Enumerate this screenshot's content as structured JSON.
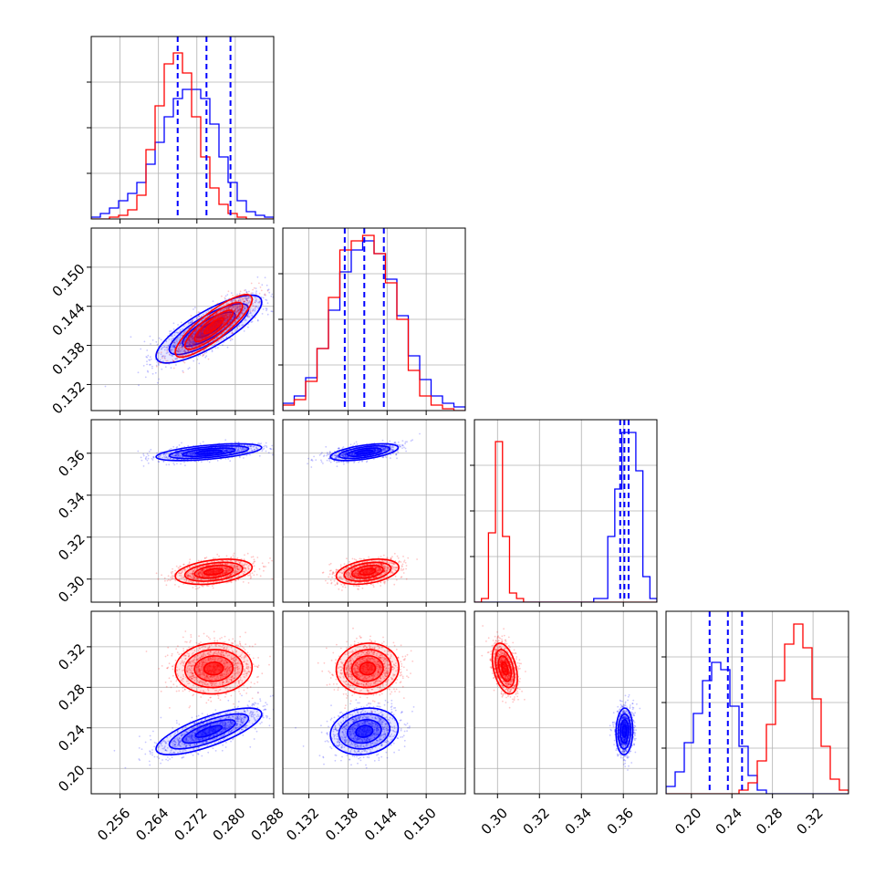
{
  "chart_data": {
    "type": "corner",
    "parameters": 4,
    "grid": true,
    "colors": {
      "model_a": "#0000ff",
      "model_b": "#ff0000"
    },
    "axes": [
      {
        "range": [
          0.25,
          0.288
        ],
        "ticks": [
          0.256,
          0.264,
          0.272,
          0.28,
          0.288
        ],
        "tick_labels": [
          "0.256",
          "0.264",
          "0.272",
          "0.280",
          "0.288"
        ]
      },
      {
        "range": [
          0.128,
          0.156
        ],
        "ticks": [
          0.132,
          0.138,
          0.144,
          0.15
        ],
        "tick_labels": [
          "0.132",
          "0.138",
          "0.144",
          "0.150"
        ]
      },
      {
        "range": [
          0.289,
          0.376
        ],
        "ticks": [
          0.3,
          0.32,
          0.34,
          0.36
        ],
        "tick_labels": [
          "0.30",
          "0.32",
          "0.34",
          "0.36"
        ]
      },
      {
        "range": [
          0.175,
          0.355
        ],
        "ticks": [
          0.2,
          0.24,
          0.28,
          0.32
        ],
        "tick_labels": [
          "0.20",
          "0.24",
          "0.28",
          "0.32"
        ]
      }
    ],
    "series": [
      {
        "color": "#0000ff",
        "means": [
          0.2745,
          0.1405,
          0.3605,
          0.2365
        ],
        "sigmas": [
          0.0055,
          0.0026,
          0.002,
          0.0115
        ],
        "correlations": [
          [
            0,
            1,
            0.8
          ],
          [
            0,
            2,
            0.55
          ],
          [
            0,
            3,
            0.75
          ],
          [
            1,
            2,
            0.55
          ],
          [
            1,
            3,
            0.15
          ],
          [
            2,
            3,
            0.05
          ]
        ],
        "quantile_lines": [
          [
            0.268,
            0.274,
            0.279
          ],
          [
            0.1375,
            0.1405,
            0.1435
          ],
          [
            0.3585,
            0.3605,
            0.3625
          ],
          [
            0.218,
            0.236,
            0.25
          ]
        ],
        "histograms": [
          [
            0.01,
            0.03,
            0.06,
            0.1,
            0.14,
            0.2,
            0.3,
            0.42,
            0.56,
            0.66,
            0.71,
            0.71,
            0.66,
            0.52,
            0.34,
            0.2,
            0.1,
            0.04,
            0.02,
            0.01
          ],
          [
            0.04,
            0.08,
            0.18,
            0.34,
            0.55,
            0.76,
            0.88,
            0.93,
            0.86,
            0.72,
            0.52,
            0.3,
            0.17,
            0.08,
            0.04,
            0.02
          ],
          [
            0.0,
            0.0,
            0.0,
            0.0,
            0.0,
            0.0,
            0.0,
            0.0,
            0.0,
            0.0,
            0.0,
            0.0,
            0.0,
            0.0,
            0.0,
            0.0,
            0.0,
            0.02,
            0.02,
            0.36,
            0.62,
            0.93,
            0.93,
            0.72,
            0.14,
            0.02
          ],
          [
            0.04,
            0.12,
            0.28,
            0.44,
            0.62,
            0.72,
            0.68,
            0.48,
            0.26,
            0.1,
            0.02,
            0.0,
            0.0,
            0.0,
            0.0,
            0.0,
            0.0,
            0.0,
            0.0,
            0.0
          ]
        ]
      },
      {
        "color": "#ff0000",
        "means": [
          0.2755,
          0.141,
          0.3035,
          0.2985
        ],
        "sigmas": [
          0.004,
          0.0024,
          0.003,
          0.0125
        ],
        "correlations": [
          [
            0,
            1,
            0.85
          ],
          [
            0,
            2,
            0.35
          ],
          [
            0,
            3,
            0.05
          ],
          [
            1,
            2,
            0.35
          ],
          [
            1,
            3,
            0.05
          ],
          [
            2,
            3,
            -0.4
          ]
        ],
        "quantile_lines": [],
        "histograms": [
          [
            0.0,
            0.0,
            0.01,
            0.02,
            0.05,
            0.13,
            0.38,
            0.62,
            0.85,
            0.91,
            0.8,
            0.56,
            0.34,
            0.17,
            0.08,
            0.03,
            0.01,
            0.0,
            0.0,
            0.0
          ],
          [
            0.03,
            0.06,
            0.16,
            0.34,
            0.62,
            0.88,
            0.93,
            0.96,
            0.86,
            0.7,
            0.5,
            0.22,
            0.08,
            0.03,
            0.01,
            0.0
          ],
          [
            0.0,
            0.02,
            0.38,
            0.88,
            0.36,
            0.05,
            0.02,
            0.0,
            0.0,
            0.0,
            0.0,
            0.0,
            0.0,
            0.0,
            0.0,
            0.0,
            0.0,
            0.0,
            0.0,
            0.0,
            0.0,
            0.0,
            0.0,
            0.0,
            0.0,
            0.0
          ],
          [
            0.0,
            0.0,
            0.0,
            0.0,
            0.0,
            0.0,
            0.0,
            0.0,
            0.02,
            0.06,
            0.18,
            0.38,
            0.62,
            0.82,
            0.93,
            0.8,
            0.52,
            0.26,
            0.08,
            0.02
          ]
        ]
      }
    ]
  }
}
